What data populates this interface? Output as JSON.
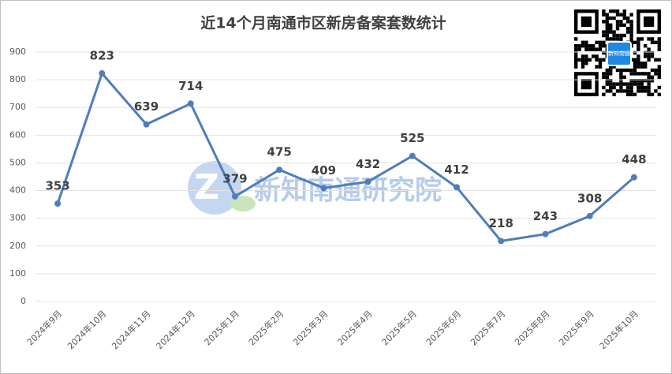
{
  "chart_data": {
    "type": "line",
    "title": "近14个月南通市区新房备案套数统计",
    "categories": [
      "2024年9月",
      "2024年10月",
      "2024年11月",
      "2024年12月",
      "2025年1月",
      "2025年2月",
      "2025年3月",
      "2025年4月",
      "2025年5月",
      "2025年6月",
      "2025年7月",
      "2025年8月",
      "2025年9月",
      "2025年10月"
    ],
    "series": [
      {
        "name": "新房备案套数",
        "color": "#4f7dba",
        "values": [
          353,
          823,
          639,
          714,
          379,
          475,
          409,
          432,
          525,
          412,
          218,
          243,
          308,
          448
        ]
      }
    ],
    "ylim": [
      0,
      900
    ],
    "yticks": [
      0,
      100,
      200,
      300,
      400,
      500,
      600,
      700,
      800,
      900
    ],
    "grid": true,
    "watermark": "新知南通研究院",
    "qr_label": "新知南通"
  }
}
